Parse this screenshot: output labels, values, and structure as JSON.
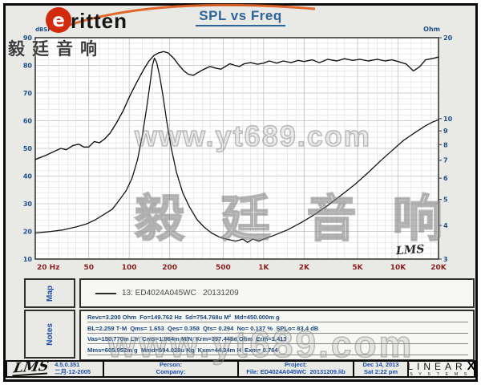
{
  "brand": {
    "mark_letter": "e",
    "name_rest": "ritten",
    "cjk_name": "毅廷音响"
  },
  "title": "SPL vs Freq",
  "colors": {
    "title": "#2b6599",
    "axis_left": "#1d4e89",
    "axis_x": "#8a1f1f",
    "curve": "#141414",
    "logo_red": "#d22a0c",
    "logo_arc": "#e05a17"
  },
  "watermarks": {
    "mid_www": "www.yt689.com",
    "mid_cjk": "毅 廷 音 响",
    "bottom": "www.yt689.com"
  },
  "chart_data": {
    "type": "line",
    "title": "SPL vs Freq",
    "grid": true,
    "x_axis": {
      "label": "Hz",
      "scale": "log",
      "min": 20,
      "max": 20000,
      "tick_labels": [
        "20 Hz",
        "50",
        "100",
        "200",
        "500",
        "1K",
        "2K",
        "5K",
        "10K",
        "20K"
      ],
      "tick_values": [
        20,
        50,
        100,
        200,
        500,
        1000,
        2000,
        5000,
        10000,
        20000
      ]
    },
    "y_left": {
      "unit": "dBSPL",
      "scale": "linear",
      "min": 10,
      "max": 90,
      "ticks": [
        90,
        80,
        70,
        60,
        50,
        40,
        30,
        20,
        10
      ]
    },
    "y_right": {
      "unit": "Ohm",
      "scale": "log",
      "min": 3,
      "max": 20,
      "ticks": [
        20,
        10,
        9,
        8,
        7,
        6,
        5,
        4,
        3
      ]
    },
    "inner_logo": "LMS",
    "series": [
      {
        "name": "SPL (dB)",
        "axis": "left",
        "points": [
          [
            20,
            46
          ],
          [
            24,
            47.5
          ],
          [
            28,
            49
          ],
          [
            31,
            50
          ],
          [
            34,
            49.5
          ],
          [
            38,
            51
          ],
          [
            42,
            51.5
          ],
          [
            46,
            50.5
          ],
          [
            50,
            50.5
          ],
          [
            55,
            52.5
          ],
          [
            60,
            52
          ],
          [
            66,
            53.5
          ],
          [
            72,
            55.5
          ],
          [
            80,
            59
          ],
          [
            90,
            63.5
          ],
          [
            100,
            68.5
          ],
          [
            110,
            72.5
          ],
          [
            120,
            76
          ],
          [
            130,
            79
          ],
          [
            140,
            81.5
          ],
          [
            152,
            83.5
          ],
          [
            165,
            84.5
          ],
          [
            180,
            85
          ],
          [
            195,
            84.5
          ],
          [
            215,
            82.5
          ],
          [
            235,
            80
          ],
          [
            255,
            78
          ],
          [
            275,
            76.8
          ],
          [
            300,
            76.4
          ],
          [
            330,
            77.6
          ],
          [
            360,
            78.6
          ],
          [
            400,
            79.6
          ],
          [
            440,
            79
          ],
          [
            480,
            78.6
          ],
          [
            520,
            79.6
          ],
          [
            560,
            80.6
          ],
          [
            610,
            80
          ],
          [
            660,
            79.6
          ],
          [
            720,
            80.6
          ],
          [
            800,
            81
          ],
          [
            900,
            80.4
          ],
          [
            1000,
            80.8
          ],
          [
            1100,
            81.6
          ],
          [
            1250,
            80.8
          ],
          [
            1400,
            81.6
          ],
          [
            1600,
            81
          ],
          [
            1800,
            81.8
          ],
          [
            2000,
            81.4
          ],
          [
            2300,
            82
          ],
          [
            2600,
            81
          ],
          [
            3000,
            82.2
          ],
          [
            3500,
            81.6
          ],
          [
            4000,
            82.4
          ],
          [
            4600,
            81.8
          ],
          [
            5200,
            82.2
          ],
          [
            6000,
            81.6
          ],
          [
            7000,
            82.2
          ],
          [
            8000,
            81.6
          ],
          [
            9000,
            82
          ],
          [
            10000,
            81.4
          ],
          [
            11500,
            80.5
          ],
          [
            13000,
            78
          ],
          [
            14500,
            79.5
          ],
          [
            16000,
            82
          ],
          [
            18000,
            82.5
          ],
          [
            20000,
            83
          ]
        ]
      },
      {
        "name": "Impedance (Ohm)",
        "axis": "right",
        "points": [
          [
            20,
            3.75
          ],
          [
            26,
            3.8
          ],
          [
            32,
            3.85
          ],
          [
            40,
            3.95
          ],
          [
            48,
            4.05
          ],
          [
            56,
            4.2
          ],
          [
            65,
            4.4
          ],
          [
            75,
            4.6
          ],
          [
            85,
            5
          ],
          [
            95,
            5.4
          ],
          [
            105,
            6
          ],
          [
            115,
            7
          ],
          [
            125,
            8.6
          ],
          [
            135,
            11
          ],
          [
            143,
            13.5
          ],
          [
            149,
            15.8
          ],
          [
            154,
            16.8
          ],
          [
            160,
            16.2
          ],
          [
            168,
            14.5
          ],
          [
            178,
            12.2
          ],
          [
            190,
            9.8
          ],
          [
            205,
            7.8
          ],
          [
            225,
            6.3
          ],
          [
            250,
            5.3
          ],
          [
            280,
            4.7
          ],
          [
            320,
            4.2
          ],
          [
            360,
            3.95
          ],
          [
            410,
            3.75
          ],
          [
            470,
            3.62
          ],
          [
            540,
            3.55
          ],
          [
            620,
            3.5
          ],
          [
            700,
            3.56
          ],
          [
            760,
            3.46
          ],
          [
            830,
            3.56
          ],
          [
            920,
            3.5
          ],
          [
            1000,
            3.56
          ],
          [
            1200,
            3.68
          ],
          [
            1500,
            3.85
          ],
          [
            1900,
            4.1
          ],
          [
            2400,
            4.4
          ],
          [
            3000,
            4.75
          ],
          [
            3800,
            5.2
          ],
          [
            4800,
            5.7
          ],
          [
            6000,
            6.3
          ],
          [
            7500,
            7
          ],
          [
            9000,
            7.6
          ],
          [
            11000,
            8.3
          ],
          [
            13500,
            8.9
          ],
          [
            16000,
            9.4
          ],
          [
            18000,
            9.7
          ],
          [
            20000,
            9.9
          ]
        ]
      }
    ]
  },
  "map": {
    "label": "Map",
    "legend_text": "13: ED4024A045WC   20131209"
  },
  "notes": {
    "label": "Notes",
    "lines": [
      "Revc=3.200 Ohm  Fo=149.762 Hz  Sd=754.768u M²  Md=450.000m g",
      "BL=2.259 T·M  Qms= 1.653  Qes= 0.358  Qts= 0.294  No= 0.137 %  SPLo= 83.4 dB",
      "Vas=150.770m Ltr  Cms=1.864m M/N  Krm=397.448n Ohm  Erm=1.413",
      "Mms=605.952m g  Mmd=594.029u Kg  Kxm=44.34m H  Exm= 0.764"
    ]
  },
  "footer": {
    "lms_logo": "LMS",
    "version": "4.5.0.351",
    "version_date": "二月-12-2005",
    "person_label": "Person:",
    "company_label": "Company:",
    "project_label": "Project:",
    "file_label": "File: ED4024A045WC  20131209.lib",
    "date": "Dec 14, 2013",
    "time": "Sat 2:22 pm",
    "linearx_main": "LINEAR",
    "linearx_x": "X",
    "linearx_sub": "SYSTEMS"
  }
}
